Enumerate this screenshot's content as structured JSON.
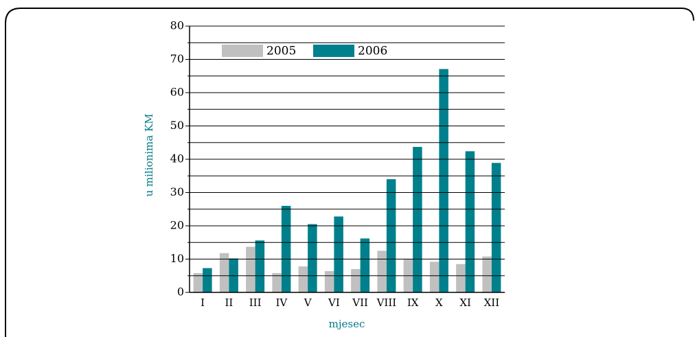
{
  "chart_data": {
    "type": "bar",
    "x_label": "mjesec",
    "y_label": "u milionima KM",
    "categories": [
      "I",
      "II",
      "III",
      "IV",
      "V",
      "VI",
      "VII",
      "VIII",
      "IX",
      "X",
      "XI",
      "XII"
    ],
    "series": [
      {
        "name": "2005",
        "color": "#c0c0c0",
        "values": [
          5.8,
          11.8,
          13.7,
          5.8,
          7.8,
          6.4,
          7.0,
          12.5,
          10.0,
          9.2,
          8.5,
          10.8
        ]
      },
      {
        "name": "2006",
        "color": "#00808c",
        "values": [
          7.3,
          10.2,
          15.6,
          26.0,
          20.5,
          22.8,
          16.2,
          34.0,
          43.7,
          67.1,
          42.4,
          38.9
        ]
      }
    ],
    "ylim": [
      0,
      80
    ],
    "yticks": [
      0,
      10,
      20,
      30,
      40,
      50,
      60,
      70,
      80
    ],
    "minor_yticks": [
      5,
      15,
      25,
      35,
      45,
      55,
      65,
      75
    ],
    "grid": true,
    "legend": "top-left"
  }
}
